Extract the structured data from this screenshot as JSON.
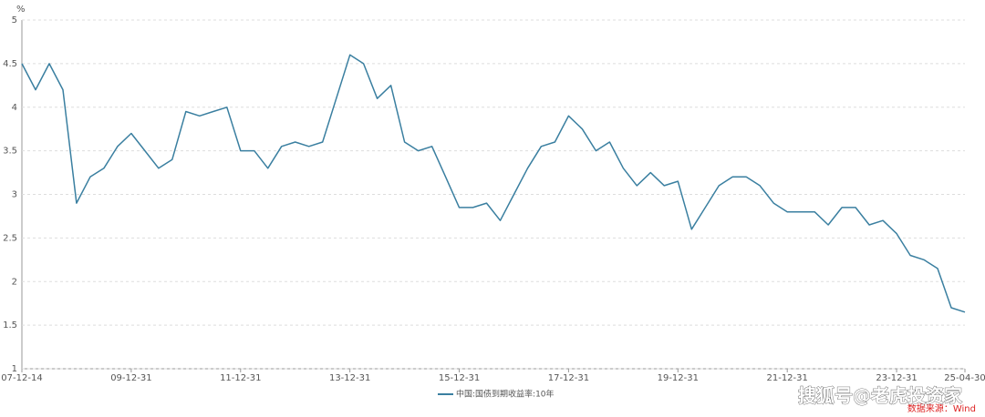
{
  "chart_data": {
    "type": "line",
    "y_label": "%",
    "categories": [
      "07-12-14",
      null,
      null,
      null,
      null,
      null,
      null,
      null,
      "09-12-31",
      null,
      null,
      null,
      null,
      null,
      null,
      null,
      "11-12-31",
      null,
      null,
      null,
      null,
      null,
      null,
      null,
      "13-12-31",
      null,
      null,
      null,
      null,
      null,
      null,
      null,
      "15-12-31",
      null,
      null,
      null,
      null,
      null,
      null,
      null,
      "17-12-31",
      null,
      null,
      null,
      null,
      null,
      null,
      null,
      "19-12-31",
      null,
      null,
      null,
      null,
      null,
      null,
      null,
      "21-12-31",
      null,
      null,
      null,
      null,
      null,
      null,
      null,
      "23-12-31",
      null,
      null,
      null,
      null,
      "25-04-30"
    ],
    "series": [
      {
        "name": "中国:国债到期收益率:10年",
        "color": "#3a7fa0",
        "values": [
          4.5,
          4.2,
          4.5,
          4.2,
          2.9,
          3.2,
          3.3,
          3.55,
          3.7,
          3.5,
          3.3,
          3.4,
          3.95,
          3.9,
          3.95,
          4.0,
          3.5,
          3.5,
          3.3,
          3.55,
          3.6,
          3.55,
          3.6,
          4.1,
          4.6,
          4.5,
          4.1,
          4.25,
          3.6,
          3.5,
          3.55,
          3.2,
          2.85,
          2.85,
          2.9,
          2.7,
          3.0,
          3.3,
          3.55,
          3.6,
          3.9,
          3.75,
          3.5,
          3.6,
          3.3,
          3.1,
          3.25,
          3.1,
          3.15,
          2.6,
          2.85,
          3.1,
          3.2,
          3.2,
          3.1,
          2.9,
          2.8,
          2.8,
          2.8,
          2.65,
          2.85,
          2.85,
          2.65,
          2.7,
          2.55,
          2.3,
          2.25,
          2.15,
          1.7,
          1.65
        ]
      }
    ],
    "ylim": [
      1,
      5
    ],
    "yticks": [
      1,
      1.5,
      2,
      2.5,
      3,
      3.5,
      4,
      4.5,
      5
    ],
    "grid": true,
    "legend": "bottom",
    "source": "数据来源：Wind",
    "watermark": "搜狐号@老虎投资家"
  }
}
